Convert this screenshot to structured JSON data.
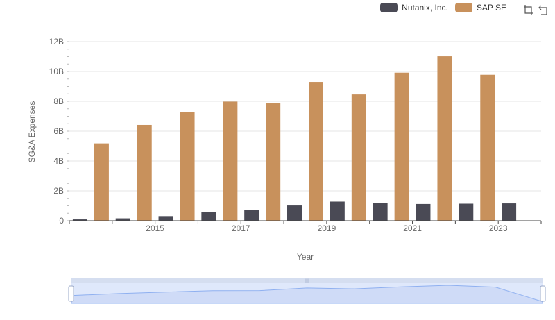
{
  "chart_data": {
    "type": "bar",
    "xlabel": "Year",
    "ylabel": "SG&A Expenses",
    "categories": [
      "2014",
      "2015",
      "2016",
      "2017",
      "2018",
      "2019",
      "2020",
      "2021",
      "2022",
      "2023",
      "2024"
    ],
    "x_tick_labels": [
      "2015",
      "2017",
      "2019",
      "2021",
      "2023"
    ],
    "y_tick_labels": [
      "0",
      "2B",
      "4B",
      "6B",
      "8B",
      "10B",
      "12B"
    ],
    "ylim": [
      0,
      12000000000
    ],
    "legend_position": "top-right",
    "grid": true,
    "series": [
      {
        "name": "Nutanix, Inc.",
        "color": "#4a4a55",
        "values": [
          90000000,
          160000000,
          310000000,
          560000000,
          720000000,
          1020000000,
          1280000000,
          1190000000,
          1120000000,
          1140000000,
          1160000000
        ]
      },
      {
        "name": "SAP SE",
        "color": "#c8915c",
        "values": [
          5180000000,
          6420000000,
          7280000000,
          7980000000,
          7860000000,
          9300000000,
          8460000000,
          9920000000,
          11020000000,
          9780000000,
          null
        ]
      }
    ]
  },
  "toolbox": {
    "zoom_icon": "zoom-icon",
    "reset_icon": "reset-icon"
  }
}
